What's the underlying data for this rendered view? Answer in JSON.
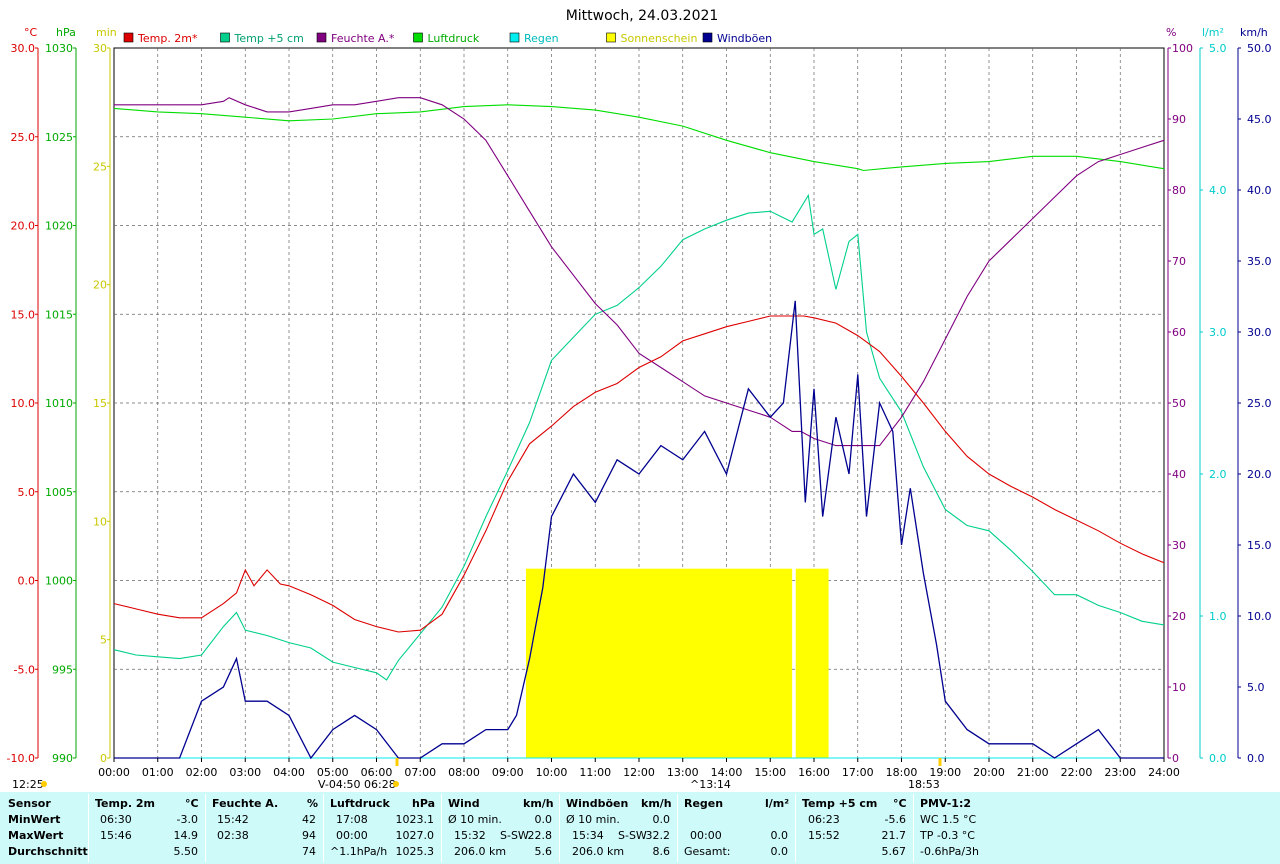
{
  "title": "Mittwoch, 24.03.2021",
  "colors": {
    "temp2m": "#dd0000",
    "temp5cm": "#00d08c",
    "feuchte": "#800080",
    "luftdruck": "#00dd00",
    "regen": "#00eeee",
    "sonne": "#ffff00",
    "wind": "#000090",
    "plot_bg": "#ffffff",
    "panel_bg": "#cffafa"
  },
  "chart_data": {
    "type": "line",
    "title": "Mittwoch, 24.03.2021",
    "x_ticks": [
      "00:00",
      "01:00",
      "02:00",
      "03:00",
      "04:00",
      "05:00",
      "06:00",
      "07:00",
      "08:00",
      "09:00",
      "10:00",
      "11:00",
      "12:00",
      "13:00",
      "14:00",
      "15:00",
      "16:00",
      "17:00",
      "18:00",
      "19:00",
      "20:00",
      "21:00",
      "22:00",
      "23:00",
      "24:00"
    ],
    "x_range_hours": [
      0,
      24
    ],
    "grid": true,
    "legend_position": "top",
    "axes": {
      "temp": {
        "unit": "°C",
        "range": [
          -10,
          30
        ],
        "ticks": [
          "30.0",
          "25.0",
          "20.0",
          "15.0",
          "10.0",
          "5.0",
          "0.0",
          "-5.0",
          "-10.0"
        ]
      },
      "press": {
        "unit": "hPa",
        "range": [
          990,
          1030
        ],
        "ticks": [
          "1030",
          "1025",
          "1020",
          "1015",
          "1010",
          "1005",
          "1000",
          "995",
          "990"
        ]
      },
      "sun": {
        "unit": "min",
        "range": [
          0,
          30
        ],
        "ticks": [
          "30",
          "25",
          "20",
          "15",
          "10",
          "5",
          "0"
        ]
      },
      "hum": {
        "unit": "%",
        "range": [
          0,
          100
        ],
        "ticks": [
          "100",
          "90",
          "80",
          "70",
          "60",
          "50",
          "40",
          "30",
          "20",
          "10",
          "0"
        ]
      },
      "rain": {
        "unit": "l/m²",
        "range": [
          0,
          5
        ],
        "ticks": [
          "5.0",
          "4.0",
          "3.0",
          "2.0",
          "1.0",
          "0.0"
        ]
      },
      "wind": {
        "unit": "km/h",
        "range": [
          0,
          50
        ],
        "ticks": [
          "50.0",
          "45.0",
          "40.0",
          "35.0",
          "30.0",
          "25.0",
          "20.0",
          "15.0",
          "10.0",
          "5.0",
          "0.0"
        ]
      }
    },
    "series": [
      {
        "name": "Temp. 2m*",
        "axis": "temp",
        "x": [
          0,
          0.5,
          1,
          1.5,
          2,
          2.5,
          2.8,
          3,
          3.2,
          3.5,
          3.8,
          4,
          4.5,
          5,
          5.5,
          6,
          6.5,
          7,
          7.5,
          8,
          8.5,
          9,
          9.5,
          10,
          10.5,
          11,
          11.5,
          12,
          12.5,
          13,
          13.5,
          14,
          14.5,
          15,
          15.5,
          15.77,
          16,
          16.5,
          17,
          17.5,
          18,
          18.5,
          19,
          19.5,
          20,
          20.5,
          21,
          21.5,
          22,
          22.5,
          23,
          23.5,
          24
        ],
        "values": [
          -1.3,
          -1.6,
          -1.9,
          -2.1,
          -2.1,
          -1.3,
          -0.7,
          0.6,
          -0.3,
          0.6,
          -0.2,
          -0.3,
          -0.8,
          -1.4,
          -2.2,
          -2.6,
          -2.9,
          -2.8,
          -1.9,
          0.3,
          2.8,
          5.6,
          7.7,
          8.7,
          9.8,
          10.6,
          11.1,
          12.0,
          12.6,
          13.5,
          13.9,
          14.3,
          14.6,
          14.9,
          14.9,
          14.9,
          14.8,
          14.5,
          13.8,
          12.9,
          11.5,
          10.0,
          8.4,
          7.0,
          6.0,
          5.3,
          4.7,
          4.0,
          3.4,
          2.8,
          2.1,
          1.5,
          1.0
        ]
      },
      {
        "name": "Temp +5 cm",
        "axis": "temp",
        "x": [
          0,
          0.5,
          1,
          1.5,
          2,
          2.5,
          2.8,
          3,
          3.5,
          4,
          4.5,
          5,
          5.5,
          6,
          6.23,
          6.5,
          7,
          7.5,
          8,
          8.5,
          9,
          9.5,
          10,
          10.5,
          11,
          11.5,
          12,
          12.5,
          13,
          13.5,
          14,
          14.5,
          15,
          15.5,
          15.87,
          16,
          16.2,
          16.5,
          16.8,
          17,
          17.2,
          17.5,
          18,
          18.5,
          19,
          19.5,
          20,
          20.5,
          21,
          21.5,
          22,
          22.5,
          23,
          23.5,
          24
        ],
        "values": [
          -3.9,
          -4.2,
          -4.3,
          -4.4,
          -4.2,
          -2.6,
          -1.8,
          -2.8,
          -3.1,
          -3.5,
          -3.8,
          -4.6,
          -4.9,
          -5.2,
          -5.6,
          -4.5,
          -3.0,
          -1.5,
          0.8,
          3.6,
          6.2,
          8.9,
          12.4,
          13.7,
          15.0,
          15.5,
          16.5,
          17.7,
          19.2,
          19.8,
          20.3,
          20.7,
          20.8,
          20.2,
          21.7,
          19.5,
          19.8,
          16.4,
          19.1,
          19.5,
          14.0,
          11.4,
          9.5,
          6.4,
          4.0,
          3.1,
          2.8,
          1.7,
          0.5,
          -0.8,
          -0.8,
          -1.4,
          -1.8,
          -2.3,
          -2.5
        ]
      },
      {
        "name": "Feuchte A.*",
        "axis": "hum",
        "x": [
          0,
          0.5,
          1,
          1.5,
          2,
          2.5,
          2.63,
          3,
          3.5,
          4,
          4.5,
          5,
          5.5,
          6,
          6.5,
          7,
          7.5,
          8,
          8.5,
          9,
          9.5,
          10,
          10.5,
          11,
          11.5,
          12,
          12.5,
          13,
          13.5,
          14,
          14.5,
          15,
          15.5,
          15.7,
          16,
          16.5,
          17,
          17.5,
          18,
          18.5,
          19,
          19.5,
          20,
          20.5,
          21,
          21.5,
          22,
          22.5,
          23,
          23.5,
          24
        ],
        "values": [
          92,
          92,
          92,
          92,
          92,
          92.5,
          93,
          92,
          91,
          91,
          91.5,
          92,
          92,
          92.5,
          93,
          93,
          92,
          90,
          87,
          82,
          77,
          72,
          68,
          64,
          61,
          57,
          55,
          53,
          51,
          50,
          49,
          48,
          46,
          46,
          45,
          44,
          44,
          44,
          48,
          53,
          59,
          65,
          70,
          73,
          76,
          79,
          82,
          84,
          85,
          86,
          87
        ]
      },
      {
        "name": "Luftdruck",
        "axis": "press",
        "x": [
          0,
          1,
          2,
          3,
          4,
          5,
          6,
          7,
          8,
          9,
          10,
          11,
          12,
          13,
          14,
          15,
          16,
          17,
          17.13,
          18,
          19,
          20,
          21,
          22,
          23,
          24
        ],
        "values": [
          1026.6,
          1026.4,
          1026.3,
          1026.1,
          1025.9,
          1026.0,
          1026.3,
          1026.4,
          1026.7,
          1026.8,
          1026.7,
          1026.5,
          1026.1,
          1025.6,
          1024.8,
          1024.1,
          1023.6,
          1023.2,
          1023.1,
          1023.3,
          1023.5,
          1023.6,
          1023.9,
          1023.9,
          1023.6,
          1023.2
        ]
      },
      {
        "name": "Regen",
        "axis": "rain",
        "x": [
          0,
          24
        ],
        "values": [
          0,
          0
        ]
      },
      {
        "name": "Windböen",
        "axis": "wind",
        "x": [
          0,
          0.5,
          1,
          1.5,
          2,
          2.5,
          2.8,
          3,
          3.5,
          4,
          4.5,
          5,
          5.5,
          6,
          6.5,
          7,
          7.5,
          8,
          8.5,
          9,
          9.2,
          9.5,
          9.8,
          10,
          10.5,
          11,
          11.5,
          12,
          12.5,
          13,
          13.5,
          14,
          14.5,
          15,
          15.3,
          15.57,
          15.8,
          16,
          16.2,
          16.5,
          16.8,
          17,
          17.2,
          17.5,
          17.8,
          18,
          18.2,
          18.5,
          18.8,
          19,
          19.5,
          20,
          20.5,
          21,
          21.5,
          22,
          22.5,
          23,
          23.5,
          24
        ],
        "values": [
          0,
          0,
          0,
          0,
          4,
          5,
          7,
          4,
          4,
          3,
          0,
          2,
          3,
          2,
          0,
          0,
          1,
          1,
          2,
          2,
          3,
          7,
          12,
          17,
          20,
          18,
          21,
          20,
          22,
          21,
          23,
          20,
          26,
          24,
          25,
          32.2,
          18,
          26,
          17,
          24,
          20,
          27,
          17,
          25,
          23,
          15,
          19,
          13,
          8,
          4,
          2,
          1,
          1,
          1,
          0,
          1,
          2,
          0,
          0,
          0
        ]
      }
    ],
    "sunshine_bars": [
      {
        "start": "09:25",
        "end": "15:30",
        "minutes": 8
      },
      {
        "start": "15:35",
        "end": "16:20",
        "minutes": 8
      }
    ],
    "annotations": {
      "bottom_left_time": "12:25",
      "sunrise": "V-04:50",
      "twilight": "06:28",
      "noon": "^13:14",
      "sunset": "18:53"
    }
  },
  "legend": [
    {
      "label": "Temp. 2m*",
      "color": "#dd0000",
      "text_color": "#dd0000"
    },
    {
      "label": "Temp +5 cm",
      "color": "#00d08c",
      "text_color": "#00a070"
    },
    {
      "label": "Feuchte A.*",
      "color": "#800080",
      "text_color": "#800080"
    },
    {
      "label": "Luftdruck",
      "color": "#00dd00",
      "text_color": "#00aa00"
    },
    {
      "label": "Regen",
      "color": "#00eeee",
      "text_color": "#00bbbb"
    },
    {
      "label": "Sonnenschein",
      "color": "#ffff00",
      "text_color": "#c8c800"
    },
    {
      "label": "Windböen",
      "color": "#000090",
      "text_color": "#000090"
    }
  ],
  "stats": {
    "row_labels": [
      "Sensor",
      "MinWert",
      "MaxWert",
      "Durchschnitt"
    ],
    "temp2m": {
      "title": "Temp. 2m",
      "unit": "°C",
      "min_time": "06:30",
      "min": "-3.0",
      "max_time": "15:46",
      "max": "14.9",
      "avg": "5.50"
    },
    "feuchte": {
      "title": "Feuchte A.",
      "unit": "%",
      "min_time": "15:42",
      "min": "42",
      "max_time": "02:38",
      "max": "94",
      "avg": "74"
    },
    "luftdruck": {
      "title": "Luftdruck",
      "unit": "hPa",
      "min_time": "17:08",
      "min": "1023.1",
      "max_time": "00:00",
      "max": "1027.0",
      "avg_label": "^1.1hPa/h",
      "avg": "1025.3"
    },
    "wind": {
      "title": "Wind",
      "unit": "km/h",
      "r1_label": "Ø 10 min.",
      "r1_val": "0.0",
      "r2_time": "15:32",
      "r2_dir": "S-SW",
      "r2_val": "22.8",
      "r3_label": "206.0 km",
      "r3_val": "5.6"
    },
    "windboeen": {
      "title": "Windböen",
      "unit": "km/h",
      "r1_label": "Ø 10 min.",
      "r1_val": "0.0",
      "r2_time": "15:34",
      "r2_dir": "S-SW",
      "r2_val": "32.2",
      "r3_label": "206.0 km",
      "r3_val": "8.6"
    },
    "regen": {
      "title": "Regen",
      "unit": "l/m²",
      "r2_time": "00:00",
      "r2_val": "0.0",
      "r3_label": "Gesamt:",
      "r3_val": "0.0"
    },
    "temp5": {
      "title": "Temp +5 cm",
      "unit": "°C",
      "min_time": "06:23",
      "min": "-5.6",
      "max_time": "15:52",
      "max": "21.7",
      "avg": "5.67"
    },
    "pmv": {
      "title": "PMV-1:2",
      "r1": "WC 1.5 °C",
      "r2": "TP -0.3 °C",
      "r3": "-0.6hPa/3h"
    }
  }
}
